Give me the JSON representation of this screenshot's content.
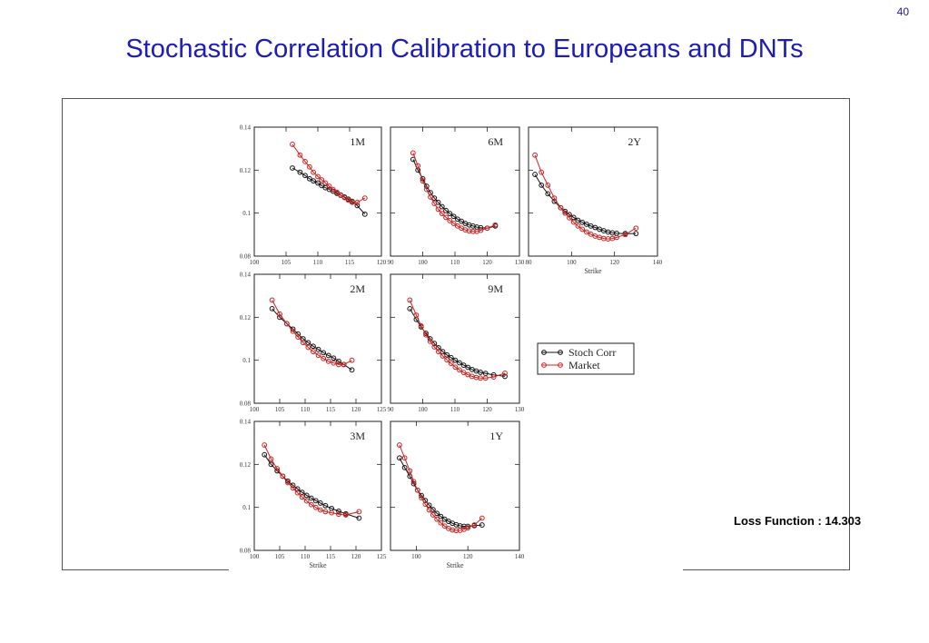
{
  "page_number": "40",
  "title": "Stochastic Correlation Calibration to Europeans and DNTs",
  "loss_function": "Loss Function : 14.303",
  "colors": {
    "title": "#1c1cb8",
    "stoch": "#111111",
    "market": "#cc2222"
  },
  "chart_data": {
    "type": "line",
    "legend": {
      "placement": "center-right",
      "entries": [
        "Stoch Corr",
        "Market"
      ]
    },
    "ylim": [
      0.08,
      0.14
    ],
    "yticks": [
      "0.14",
      "0.12",
      "0.1",
      "0.08"
    ],
    "panels": [
      {
        "label": "1M",
        "xlim": [
          100,
          120
        ],
        "xticks": [
          "100",
          "105",
          "110",
          "115",
          "120"
        ],
        "xlabel": "",
        "series": [
          {
            "name": "Stoch Corr",
            "x": [
              106,
              107.2,
              108,
              108.7,
              109.3,
              110,
              110.6,
              111.2,
              111.8,
              112.4,
              113,
              113.6,
              114.2,
              114.8,
              115.4,
              116.2,
              117.4
            ],
            "y": [
              0.121,
              0.119,
              0.1175,
              0.116,
              0.115,
              0.114,
              0.1128,
              0.1118,
              0.111,
              0.1102,
              0.1092,
              0.1083,
              0.1075,
              0.1065,
              0.1055,
              0.1035,
              0.0995
            ]
          },
          {
            "name": "Market",
            "x": [
              106,
              107.2,
              108,
              108.7,
              109.3,
              110,
              110.6,
              111.2,
              111.8,
              112.4,
              113,
              113.6,
              114.2,
              114.8,
              115.4,
              116.2,
              117.4
            ],
            "y": [
              0.132,
              0.127,
              0.124,
              0.1215,
              0.119,
              0.117,
              0.1155,
              0.114,
              0.1125,
              0.111,
              0.1097,
              0.1085,
              0.1072,
              0.106,
              0.105,
              0.105,
              0.107
            ]
          }
        ]
      },
      {
        "label": "6M",
        "xlim": [
          90,
          130
        ],
        "xticks": [
          "90",
          "100",
          "110",
          "120",
          "130"
        ],
        "xlabel": "",
        "series": [
          {
            "name": "Stoch Corr",
            "x": [
              97,
              98.5,
              100,
              101.2,
              102.4,
              103.6,
              104.8,
              106,
              107.2,
              108.4,
              109.6,
              110.8,
              112,
              113.2,
              114.4,
              115.6,
              116.8,
              118,
              120,
              122.5
            ],
            "y": [
              0.125,
              0.12,
              0.116,
              0.1125,
              0.1095,
              0.107,
              0.105,
              0.103,
              0.1012,
              0.0998,
              0.0985,
              0.0972,
              0.0962,
              0.0952,
              0.0945,
              0.094,
              0.0935,
              0.0932,
              0.093,
              0.094
            ]
          },
          {
            "name": "Market",
            "x": [
              97,
              98.5,
              100,
              101.2,
              102.4,
              103.6,
              104.8,
              106,
              107.2,
              108.4,
              109.6,
              110.8,
              112,
              113.2,
              114.4,
              115.6,
              116.8,
              118,
              120,
              122.5
            ],
            "y": [
              0.128,
              0.122,
              0.115,
              0.111,
              0.1075,
              0.1045,
              0.1018,
              0.0998,
              0.098,
              0.0965,
              0.0952,
              0.094,
              0.093,
              0.0922,
              0.0917,
              0.0915,
              0.0915,
              0.092,
              0.093,
              0.0945
            ]
          }
        ]
      },
      {
        "label": "2Y",
        "xlim": [
          80,
          140
        ],
        "xticks": [
          "80",
          "100",
          "120",
          "140"
        ],
        "xlabel": "Strike",
        "series": [
          {
            "name": "Stoch Corr",
            "x": [
              83,
              86,
              89,
              92,
              95,
              97,
              99,
              101,
              103,
              105,
              107,
              109,
              111,
              113,
              115,
              117,
              119,
              121,
              125,
              130
            ],
            "y": [
              0.118,
              0.113,
              0.109,
              0.1055,
              0.1025,
              0.1008,
              0.0993,
              0.098,
              0.0967,
              0.0957,
              0.0948,
              0.094,
              0.0933,
              0.0925,
              0.0918,
              0.0912,
              0.0908,
              0.0906,
              0.0905,
              0.0905
            ]
          },
          {
            "name": "Market",
            "x": [
              83,
              86,
              89,
              92,
              95,
              97,
              99,
              101,
              103,
              105,
              107,
              109,
              111,
              113,
              115,
              117,
              119,
              121,
              125,
              130
            ],
            "y": [
              0.127,
              0.119,
              0.113,
              0.107,
              0.1025,
              0.1,
              0.0978,
              0.0958,
              0.094,
              0.0925,
              0.0912,
              0.0902,
              0.0893,
              0.0887,
              0.0882,
              0.088,
              0.0882,
              0.0887,
              0.09,
              0.093
            ]
          }
        ]
      },
      {
        "label": "2M",
        "xlim": [
          100,
          125
        ],
        "xticks": [
          "100",
          "105",
          "110",
          "115",
          "120",
          "125"
        ],
        "xlabel": "",
        "series": [
          {
            "name": "Stoch Corr",
            "x": [
              103.5,
              105,
              106.4,
              107.6,
              108.6,
              109.6,
              110.6,
              111.6,
              112.6,
              113.6,
              114.6,
              115.6,
              116.6,
              117.6,
              119.2
            ],
            "y": [
              0.124,
              0.12,
              0.117,
              0.1145,
              0.1122,
              0.11,
              0.1082,
              0.1065,
              0.105,
              0.1035,
              0.1022,
              0.101,
              0.0995,
              0.098,
              0.0955
            ]
          },
          {
            "name": "Market",
            "x": [
              103.5,
              105,
              106.4,
              107.6,
              108.6,
              109.6,
              110.6,
              111.6,
              112.6,
              113.6,
              114.6,
              115.6,
              116.6,
              117.6,
              119.2
            ],
            "y": [
              0.128,
              0.1215,
              0.117,
              0.1135,
              0.1108,
              0.1082,
              0.106,
              0.104,
              0.1023,
              0.1008,
              0.0995,
              0.0987,
              0.098,
              0.098,
              0.1
            ]
          }
        ]
      },
      {
        "label": "9M",
        "xlim": [
          90,
          130
        ],
        "xticks": [
          "90",
          "100",
          "110",
          "120",
          "130"
        ],
        "xlabel": "",
        "series": [
          {
            "name": "Stoch Corr",
            "x": [
              96,
              98,
              99.5,
              101,
              102.3,
              103.6,
              104.9,
              106.2,
              107.5,
              108.8,
              110.1,
              111.4,
              112.7,
              114,
              115.3,
              116.6,
              117.9,
              119.5,
              122,
              125.5
            ],
            "y": [
              0.124,
              0.119,
              0.1155,
              0.1125,
              0.11,
              0.1078,
              0.1058,
              0.104,
              0.1025,
              0.1012,
              0.1,
              0.0988,
              0.0977,
              0.0967,
              0.0957,
              0.095,
              0.0944,
              0.0939,
              0.0932,
              0.0925
            ]
          },
          {
            "name": "Market",
            "x": [
              96,
              98,
              99.5,
              101,
              102.3,
              103.6,
              104.9,
              106.2,
              107.5,
              108.8,
              110.1,
              111.4,
              112.7,
              114,
              115.3,
              116.6,
              117.9,
              119.5,
              122,
              125.5
            ],
            "y": [
              0.128,
              0.121,
              0.116,
              0.1118,
              0.1088,
              0.1062,
              0.104,
              0.102,
              0.1002,
              0.0985,
              0.0968,
              0.0955,
              0.0943,
              0.0933,
              0.0925,
              0.092,
              0.0917,
              0.0917,
              0.0922,
              0.094
            ]
          }
        ]
      },
      {
        "label": "3M",
        "xlim": [
          100,
          125
        ],
        "xticks": [
          "100",
          "105",
          "110",
          "115",
          "120",
          "125"
        ],
        "xlabel": "Strike",
        "series": [
          {
            "name": "Stoch Corr",
            "x": [
              102,
              103.3,
              104.5,
              105.6,
              106.6,
              107.6,
              108.5,
              109.4,
              110.3,
              111.2,
              112.1,
              113,
              114,
              115.2,
              116.6,
              118,
              120.6
            ],
            "y": [
              0.1245,
              0.12,
              0.117,
              0.1145,
              0.1122,
              0.1103,
              0.1086,
              0.107,
              0.1056,
              0.1043,
              0.1031,
              0.102,
              0.1008,
              0.0995,
              0.0982,
              0.097,
              0.095
            ]
          },
          {
            "name": "Market",
            "x": [
              102,
              103.3,
              104.5,
              105.6,
              106.6,
              107.6,
              108.5,
              109.4,
              110.3,
              111.2,
              112.1,
              113,
              114,
              115.2,
              116.6,
              118,
              120.6
            ],
            "y": [
              0.129,
              0.1225,
              0.118,
              0.1145,
              0.1115,
              0.109,
              0.1068,
              0.1048,
              0.103,
              0.1013,
              0.1,
              0.0988,
              0.098,
              0.0975,
              0.0968,
              0.0965,
              0.098
            ]
          }
        ]
      },
      {
        "label": "1Y",
        "xlim": [
          90,
          140
        ],
        "xticks": [
          "100",
          "120",
          "140"
        ],
        "xlabel": "Strike",
        "series": [
          {
            "name": "Stoch Corr",
            "x": [
              93.5,
              95.5,
              97.5,
              99,
              100.5,
              102,
              103.5,
              105,
              106.5,
              108,
              109.5,
              111,
              112.5,
              114,
              115.5,
              117,
              118.5,
              120,
              122.5,
              125.5
            ],
            "y": [
              0.123,
              0.1185,
              0.1145,
              0.111,
              0.108,
              0.1055,
              0.1032,
              0.101,
              0.099,
              0.0972,
              0.0958,
              0.0945,
              0.0935,
              0.0926,
              0.0919,
              0.0914,
              0.0912,
              0.0912,
              0.0915,
              0.0918
            ]
          },
          {
            "name": "Market",
            "x": [
              93.5,
              95.5,
              97.5,
              99,
              100.5,
              102,
              103.5,
              105,
              106.5,
              108,
              109.5,
              111,
              112.5,
              114,
              115.5,
              117,
              118.5,
              120,
              122.5,
              125.5
            ],
            "y": [
              0.129,
              0.123,
              0.117,
              0.112,
              0.108,
              0.1045,
              0.1015,
              0.0988,
              0.0965,
              0.0945,
              0.0928,
              0.0913,
              0.0902,
              0.0895,
              0.0892,
              0.0893,
              0.0898,
              0.0905,
              0.0918,
              0.095
            ]
          }
        ]
      }
    ]
  }
}
